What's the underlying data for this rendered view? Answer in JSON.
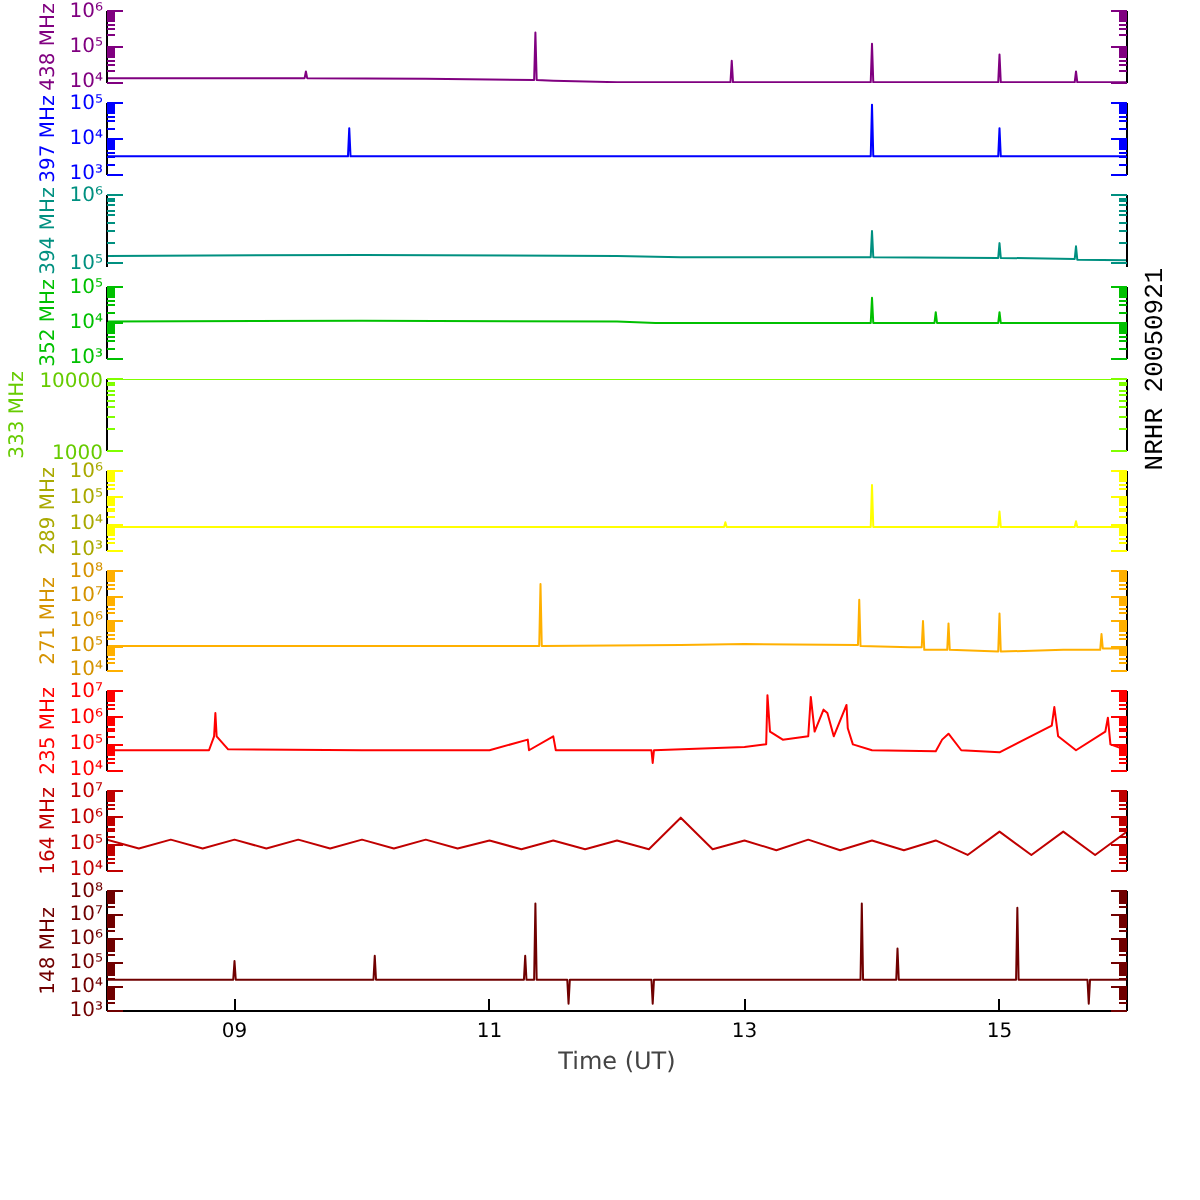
{
  "chart_data": [
    {
      "type": "line",
      "ylabel": "438 MHz",
      "log": "y",
      "xlim": [
        8,
        16
      ],
      "ylim": [
        9500,
        1000000
      ],
      "yticks": [
        {
          "value": 10000,
          "label": "10⁴"
        },
        {
          "value": 100000,
          "label": "10⁵"
        },
        {
          "value": 1000000,
          "label": "10⁶"
        }
      ],
      "tick_labels": "y",
      "grid": false,
      "series": [
        {
          "color": "#800080",
          "x": [
            8,
            9.55,
            9.56,
            9.57,
            10.5,
            11.0,
            11.35,
            11.36,
            11.37,
            11.5,
            12.0,
            12.89,
            12.9,
            12.91,
            13.99,
            14.0,
            14.01,
            14.99,
            15.0,
            15.01,
            15.59,
            15.6,
            15.61,
            16
          ],
          "values": [
            13000,
            13000,
            20000,
            13000,
            12500,
            12000,
            11500,
            250000,
            11500,
            11000,
            10000,
            10000,
            40000,
            10000,
            10000,
            120000,
            10000,
            10000,
            60000,
            10000,
            10000,
            20000,
            10000,
            10000
          ]
        }
      ]
    },
    {
      "type": "line",
      "ylabel": "397 MHz",
      "log": "y",
      "xlim": [
        8,
        16
      ],
      "ylim": [
        1000,
        100000
      ],
      "yticks": [
        {
          "value": 1000,
          "label": "10³"
        },
        {
          "value": 10000,
          "label": "10⁴"
        },
        {
          "value": 100000,
          "label": "10⁵"
        }
      ],
      "tick_labels": "y",
      "grid": false,
      "series": [
        {
          "color": "#0000ff",
          "x": [
            8,
            9.89,
            9.9,
            9.91,
            13.99,
            14.0,
            14.01,
            14.99,
            15.0,
            15.01,
            16
          ],
          "values": [
            3300,
            3300,
            20000,
            3300,
            3300,
            90000,
            3300,
            3300,
            20000,
            3300,
            3300
          ]
        }
      ]
    },
    {
      "type": "line",
      "ylabel": "394 MHz",
      "log": "y",
      "xlim": [
        8,
        16
      ],
      "ylim": [
        90000,
        1000000
      ],
      "yticks": [
        {
          "value": 100000,
          "label": "10⁵"
        },
        {
          "value": 1000000,
          "label": "10⁶"
        }
      ],
      "tick_labels": "y",
      "grid": false,
      "series": [
        {
          "color": "#009080",
          "x": [
            8,
            10,
            12,
            12.5,
            13.99,
            14.0,
            14.01,
            14.99,
            15.0,
            15.01,
            15.59,
            15.6,
            15.61,
            16
          ],
          "values": [
            130000,
            135000,
            130000,
            125000,
            125000,
            300000,
            125000,
            122000,
            200000,
            122000,
            118000,
            180000,
            115000,
            113000
          ]
        }
      ]
    },
    {
      "type": "line",
      "ylabel": "352 MHz",
      "log": "y",
      "xlim": [
        8,
        16
      ],
      "ylim": [
        1000,
        100000
      ],
      "yticks": [
        {
          "value": 1000,
          "label": "10³"
        },
        {
          "value": 10000,
          "label": "10⁴"
        },
        {
          "value": 100000,
          "label": "10⁵"
        }
      ],
      "tick_labels": "y",
      "grid": false,
      "annotations": [
        "NRHR 20050921"
      ],
      "series": [
        {
          "color": "#00c000",
          "x": [
            8,
            10,
            12,
            12.3,
            13.99,
            14.0,
            14.01,
            14.49,
            14.5,
            14.51,
            14.99,
            15.0,
            15.01,
            16
          ],
          "values": [
            11000,
            11500,
            11000,
            10000,
            10000,
            50000,
            10000,
            10000,
            20000,
            10000,
            10000,
            20000,
            10000,
            10000
          ]
        }
      ]
    },
    {
      "type": "line",
      "ylabel": "333 MHz",
      "log": "y",
      "xlim": [
        8,
        16
      ],
      "ylim": [
        1000,
        10000
      ],
      "yticks": [
        1000,
        10000
      ],
      "tick_labels": "y",
      "grid": false,
      "series": [
        {
          "color": "#80ff00",
          "x": [
            8,
            16
          ],
          "values": [
            10000,
            10000
          ]
        }
      ]
    },
    {
      "type": "line",
      "ylabel": "289 MHz",
      "log": "y",
      "xlim": [
        8,
        16
      ],
      "ylim": [
        1000,
        1000000
      ],
      "yticks": [
        {
          "value": 1000,
          "label": "10³"
        },
        {
          "value": 10000,
          "label": "10⁴"
        },
        {
          "value": 100000,
          "label": "10⁵"
        },
        {
          "value": 1000000,
          "label": "10⁶"
        }
      ],
      "tick_labels": "y",
      "grid": false,
      "series": [
        {
          "color": "#ffff00",
          "x": [
            8,
            12.84,
            12.85,
            12.86,
            13.99,
            14.0,
            14.01,
            14.99,
            15.0,
            15.01,
            15.59,
            15.6,
            15.61,
            16
          ],
          "values": [
            8000,
            8000,
            12000,
            8000,
            8000,
            300000,
            8000,
            8000,
            30000,
            8000,
            8000,
            13000,
            8000,
            8000
          ]
        }
      ]
    },
    {
      "type": "line",
      "ylabel": "271 MHz",
      "log": "y",
      "xlim": [
        8,
        16
      ],
      "ylim": [
        10000,
        100000000
      ],
      "yticks": [
        {
          "value": 10000,
          "label": "10⁴"
        },
        {
          "value": 100000,
          "label": "10⁵"
        },
        {
          "value": 1000000,
          "label": "10⁶"
        },
        {
          "value": 10000000,
          "label": "10⁷"
        },
        {
          "value": 100000000,
          "label": "10⁸"
        }
      ],
      "tick_labels": "y",
      "grid": false,
      "series": [
        {
          "color": "#ffb000",
          "x": [
            8,
            9.5,
            10.5,
            11.39,
            11.4,
            11.41,
            12.5,
            13.0,
            13.89,
            13.9,
            13.91,
            14.3,
            14.39,
            14.4,
            14.41,
            14.59,
            14.6,
            14.61,
            14.99,
            15.0,
            15.01,
            15.5,
            15.79,
            15.8,
            15.81,
            16
          ],
          "values": [
            100000,
            100000,
            100000,
            100000,
            30000000,
            100000,
            110000,
            120000,
            110000,
            7000000,
            100000,
            90000,
            90000,
            1000000,
            70000,
            70000,
            800000,
            70000,
            60000,
            2000000,
            60000,
            70000,
            70000,
            300000,
            80000,
            80000
          ]
        }
      ]
    },
    {
      "type": "line",
      "ylabel": "235 MHz",
      "log": "y",
      "xlim": [
        8,
        16
      ],
      "ylim": [
        10000,
        10000000
      ],
      "yticks": [
        {
          "value": 10000,
          "label": "10⁴"
        },
        {
          "value": 100000,
          "label": "10⁵"
        },
        {
          "value": 1000000,
          "label": "10⁶"
        },
        {
          "value": 10000000,
          "label": "10⁷"
        }
      ],
      "tick_labels": "y",
      "grid": false,
      "series": [
        {
          "color": "#ff0000",
          "x": [
            8,
            8.8,
            8.84,
            8.85,
            8.86,
            8.95,
            10,
            11.0,
            11.3,
            11.31,
            11.5,
            11.52,
            12.0,
            12.27,
            12.28,
            12.29,
            13.0,
            13.17,
            13.18,
            13.2,
            13.3,
            13.5,
            13.52,
            13.55,
            13.62,
            13.65,
            13.7,
            13.8,
            13.81,
            13.85,
            14.0,
            14.5,
            14.55,
            14.6,
            14.7,
            15.0,
            15.41,
            15.43,
            15.46,
            15.6,
            15.83,
            15.85,
            15.87,
            16
          ],
          "values": [
            60000,
            60000,
            200000,
            1500000,
            200000,
            65000,
            60000,
            60000,
            150000,
            60000,
            200000,
            60000,
            60000,
            60000,
            20000,
            60000,
            80000,
            100000,
            7000000,
            300000,
            150000,
            200000,
            6000000,
            300000,
            2000000,
            1500000,
            200000,
            3000000,
            400000,
            100000,
            60000,
            55000,
            150000,
            250000,
            60000,
            50000,
            500000,
            2500000,
            200000,
            60000,
            300000,
            1000000,
            100000,
            60000
          ]
        }
      ]
    },
    {
      "type": "line",
      "ylabel": "164 MHz",
      "log": "y",
      "xlim": [
        8,
        16
      ],
      "ylim": [
        10000,
        10000000
      ],
      "yticks": [
        {
          "value": 10000,
          "label": "10⁴"
        },
        {
          "value": 100000,
          "label": "10⁵"
        },
        {
          "value": 1000000,
          "label": "10⁶"
        },
        {
          "value": 10000000,
          "label": "10⁷"
        }
      ],
      "tick_labels": "y",
      "grid": false,
      "series": [
        {
          "color": "#c00000",
          "x": [
            8,
            8.25,
            8.5,
            8.75,
            9,
            9.25,
            9.5,
            9.75,
            10,
            10.25,
            10.5,
            10.75,
            11,
            11.25,
            11.5,
            11.75,
            12,
            12.25,
            12.5,
            12.75,
            13,
            13.25,
            13.5,
            13.75,
            14,
            14.25,
            14.5,
            14.75,
            15,
            15.25,
            15.5,
            15.75,
            16
          ],
          "values": [
            150000,
            70000,
            150000,
            70000,
            150000,
            70000,
            150000,
            70000,
            150000,
            70000,
            150000,
            70000,
            140000,
            65000,
            140000,
            65000,
            140000,
            65000,
            1000000,
            65000,
            140000,
            60000,
            150000,
            60000,
            140000,
            60000,
            140000,
            40000,
            300000,
            40000,
            300000,
            40000,
            300000
          ]
        }
      ]
    },
    {
      "type": "line",
      "ylabel": "148 MHz",
      "log": "y",
      "xlim": [
        8,
        16
      ],
      "ylim": [
        1000,
        100000000
      ],
      "xticks": [
        {
          "value": 9,
          "label": "09"
        },
        {
          "value": 11,
          "label": "11"
        },
        {
          "value": 13,
          "label": "13"
        },
        {
          "value": 15,
          "label": "15"
        }
      ],
      "xlabel": "Time (UT)",
      "yticks": [
        {
          "value": 1000,
          "label": "10³"
        },
        {
          "value": 10000,
          "label": "10⁴"
        },
        {
          "value": 100000,
          "label": "10⁵"
        },
        {
          "value": 1000000,
          "label": "10⁶"
        },
        {
          "value": 10000000,
          "label": "10⁷"
        },
        {
          "value": 100000000,
          "label": "10⁸"
        }
      ],
      "grid": false,
      "series": [
        {
          "color": "#700000",
          "x": [
            8,
            8.99,
            9.0,
            9.01,
            10.09,
            10.1,
            10.11,
            11.27,
            11.28,
            11.29,
            11.35,
            11.36,
            11.37,
            11.61,
            11.62,
            11.63,
            12.27,
            12.28,
            12.29,
            13.91,
            13.92,
            13.93,
            14.19,
            14.2,
            14.21,
            15.13,
            15.14,
            15.15,
            15.69,
            15.7,
            15.71,
            16
          ],
          "values": [
            20000,
            20000,
            120000,
            20000,
            20000,
            200000,
            20000,
            20000,
            200000,
            20000,
            20000,
            30000000,
            20000,
            20000,
            2000,
            20000,
            20000,
            2000,
            20000,
            20000,
            30000000,
            20000,
            20000,
            400000,
            20000,
            20000,
            20000000,
            20000,
            20000,
            2000,
            20000,
            20000
          ]
        }
      ]
    }
  ]
}
